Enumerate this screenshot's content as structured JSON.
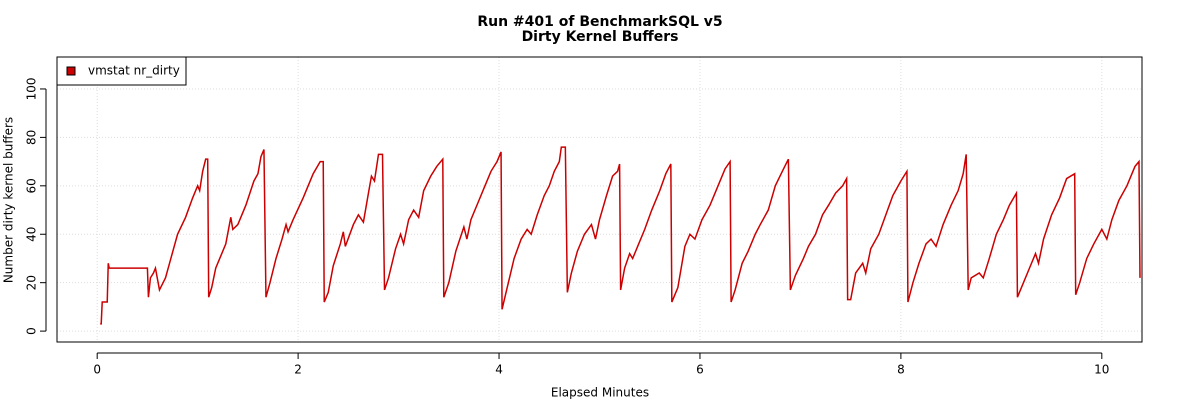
{
  "chart_data": {
    "type": "line",
    "title": "Run #401 of BenchmarkSQL v5",
    "subtitle": "Dirty Kernel Buffers",
    "x_label": "Elapsed Minutes",
    "y_label": "Number dirty kernel buffers",
    "xlim": [
      -0.4,
      10.4
    ],
    "ylim": [
      -4.5,
      113.2
    ],
    "xticks": [
      0,
      2,
      4,
      6,
      8,
      10
    ],
    "yticks": [
      0,
      20,
      40,
      60,
      80,
      100
    ],
    "grid": true,
    "legend": "top-left",
    "x": [
      0.03,
      0.04,
      0.05,
      0.1,
      0.11,
      0.12,
      0.5,
      0.51,
      0.53,
      0.56,
      0.58,
      0.62,
      0.68,
      0.72,
      0.8,
      0.88,
      0.95,
      1.0,
      1.02,
      1.05,
      1.08,
      1.1,
      1.11,
      1.14,
      1.18,
      1.22,
      1.28,
      1.33,
      1.35,
      1.4,
      1.48,
      1.56,
      1.6,
      1.63,
      1.66,
      1.68,
      1.72,
      1.78,
      1.84,
      1.88,
      1.9,
      1.95,
      2.05,
      2.15,
      2.22,
      2.25,
      2.26,
      2.3,
      2.35,
      2.42,
      2.45,
      2.47,
      2.55,
      2.6,
      2.65,
      2.7,
      2.73,
      2.76,
      2.8,
      2.84,
      2.86,
      2.9,
      2.97,
      3.02,
      3.05,
      3.1,
      3.15,
      3.2,
      3.25,
      3.32,
      3.38,
      3.44,
      3.45,
      3.5,
      3.57,
      3.65,
      3.68,
      3.72,
      3.8,
      3.86,
      3.92,
      3.98,
      4.02,
      4.03,
      4.07,
      4.15,
      4.22,
      4.28,
      4.32,
      4.38,
      4.45,
      4.5,
      4.55,
      4.6,
      4.62,
      4.66,
      4.68,
      4.72,
      4.78,
      4.85,
      4.92,
      4.96,
      5.0,
      5.07,
      5.13,
      5.18,
      5.2,
      5.21,
      5.25,
      5.3,
      5.33,
      5.38,
      5.45,
      5.52,
      5.6,
      5.66,
      5.71,
      5.72,
      5.78,
      5.85,
      5.9,
      5.95,
      6.02,
      6.1,
      6.18,
      6.25,
      6.3,
      6.31,
      6.35,
      6.42,
      6.48,
      6.55,
      6.6,
      6.68,
      6.75,
      6.82,
      6.88,
      6.9,
      6.95,
      7.03,
      7.08,
      7.15,
      7.22,
      7.28,
      7.35,
      7.42,
      7.46,
      7.47,
      7.5,
      7.55,
      7.62,
      7.65,
      7.7,
      7.78,
      7.85,
      7.92,
      8.0,
      8.06,
      8.07,
      8.12,
      8.18,
      8.25,
      8.3,
      8.35,
      8.42,
      8.5,
      8.57,
      8.62,
      8.65,
      8.67,
      8.7,
      8.78,
      8.82,
      8.88,
      8.95,
      9.02,
      9.08,
      9.15,
      9.16,
      9.22,
      9.28,
      9.34,
      9.37,
      9.42,
      9.5,
      9.58,
      9.65,
      9.73,
      9.74,
      9.78,
      9.85,
      9.92,
      10.0,
      10.05,
      10.1,
      10.17,
      10.25,
      10.33,
      10.37,
      10.38
    ],
    "series": [
      {
        "name": "vmstat nr_dirty",
        "color": "#cc0000",
        "values": [
          3,
          3,
          12,
          12,
          28,
          26,
          26,
          14,
          22,
          24,
          26,
          17,
          22,
          28,
          40,
          47,
          55,
          60,
          58,
          66,
          71,
          71,
          14,
          18,
          26,
          30,
          36,
          47,
          42,
          44,
          52,
          62,
          65,
          72,
          75,
          14,
          20,
          30,
          38,
          44,
          41,
          46,
          55,
          65,
          70,
          70,
          12,
          16,
          27,
          36,
          41,
          35,
          44,
          48,
          45,
          57,
          64,
          62,
          73,
          73,
          17,
          22,
          34,
          40,
          36,
          46,
          50,
          47,
          58,
          64,
          68,
          71,
          14,
          20,
          33,
          43,
          38,
          46,
          54,
          60,
          66,
          70,
          74,
          9,
          16,
          30,
          38,
          42,
          40,
          48,
          56,
          60,
          66,
          70,
          76,
          76,
          16,
          24,
          33,
          40,
          44,
          38,
          46,
          56,
          64,
          66,
          69,
          17,
          26,
          32,
          30,
          35,
          42,
          50,
          58,
          65,
          69,
          12,
          18,
          35,
          40,
          38,
          46,
          52,
          60,
          67,
          70,
          12,
          17,
          28,
          33,
          40,
          44,
          50,
          60,
          66,
          71,
          17,
          23,
          30,
          35,
          40,
          48,
          52,
          57,
          60,
          63,
          13,
          13,
          24,
          28,
          24,
          34,
          40,
          48,
          56,
          62,
          66,
          12,
          20,
          28,
          36,
          38,
          35,
          44,
          52,
          58,
          65,
          73,
          17,
          22,
          24,
          22,
          30,
          40,
          46,
          52,
          57,
          14,
          20,
          26,
          32,
          28,
          38,
          48,
          55,
          63,
          65,
          15,
          20,
          30,
          36,
          42,
          38,
          46,
          54,
          60,
          68,
          70,
          22
        ]
      }
    ]
  }
}
